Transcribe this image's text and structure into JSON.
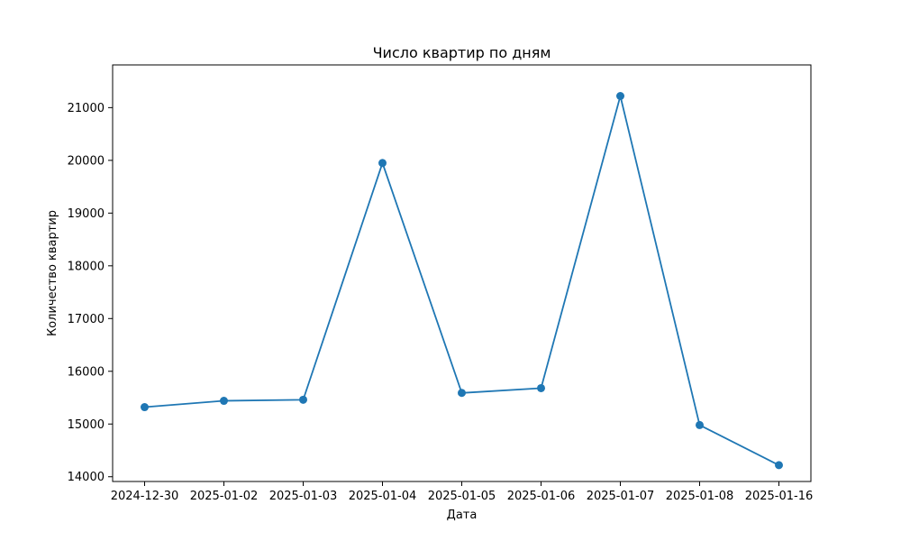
{
  "chart_data": {
    "type": "line",
    "title": "Число квартир по дням",
    "xlabel": "Дата",
    "ylabel": "Количество квартир",
    "categories": [
      "2024-12-30",
      "2025-01-02",
      "2025-01-03",
      "2025-01-04",
      "2025-01-05",
      "2025-01-06",
      "2025-01-07",
      "2025-01-08",
      "2025-01-16"
    ],
    "series": [
      {
        "values": [
          15320,
          15440,
          15460,
          19950,
          15590,
          15680,
          21220,
          14980,
          14220
        ],
        "color": "#1f77b4",
        "marker": "circle"
      }
    ],
    "yticks": [
      14000,
      15000,
      16000,
      17000,
      18000,
      19000,
      20000,
      21000
    ],
    "ylim": [
      13910,
      21810
    ],
    "grid": false,
    "legend": "none"
  }
}
